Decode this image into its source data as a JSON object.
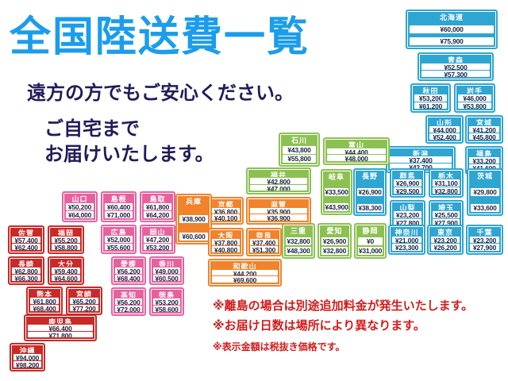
{
  "title": "全国陸送費一覧",
  "tagline1": "遠方の方でもご安心ください。",
  "tagline2": "ご自宅まで",
  "tagline3": "お届けいたします。",
  "notes": {
    "remote_islands": "※離島の場合は別途追加料金が発生いたします。",
    "delivery_days": "※お届け日数は場所により異なります。",
    "tax_excluded": "※表示金額は税抜き価格です。"
  },
  "colors": {
    "title_blue": "#1b9deb",
    "navy": "#211c59",
    "note_red": "#d31b1b",
    "group_blue": "#2fa5d2",
    "group_green": "#8cc152",
    "group_orange": "#f0832b",
    "group_pink": "#e8619f",
    "group_red": "#c92a28"
  },
  "prefectures": [
    {
      "id": "hokkaido",
      "name": "北海道",
      "group": "blue",
      "price1": "¥60,000",
      "price2": "¥75,900"
    },
    {
      "id": "aomori",
      "name": "青森",
      "group": "blue",
      "price1": "¥52,500",
      "price2": "¥57,300"
    },
    {
      "id": "akita",
      "name": "秋田",
      "group": "blue",
      "price1": "¥53,200",
      "price2": "¥61,200"
    },
    {
      "id": "iwate",
      "name": "岩手",
      "group": "blue",
      "price1": "¥46,000",
      "price2": "¥53,800"
    },
    {
      "id": "yamagata",
      "name": "山形",
      "group": "blue",
      "price1": "¥44,000",
      "price2": "¥52,400"
    },
    {
      "id": "miyagi",
      "name": "宮城",
      "group": "blue",
      "price1": "¥41,200",
      "price2": "¥45,800"
    },
    {
      "id": "niigata",
      "name": "新潟",
      "group": "blue",
      "price1": "¥37,400",
      "price2": "¥42,700"
    },
    {
      "id": "fukushima",
      "name": "福島",
      "group": "blue",
      "price1": "¥33,200",
      "price2": "¥41,600"
    },
    {
      "id": "nagano",
      "name": "長野",
      "group": "blue",
      "price1": "¥26,900",
      "price2": "¥38,300"
    },
    {
      "id": "gunma",
      "name": "群馬",
      "group": "blue",
      "price1": "¥26,900",
      "price2": "¥29,500"
    },
    {
      "id": "tochigi",
      "name": "栃木",
      "group": "blue",
      "price1": "¥31,100",
      "price2": "¥32,800"
    },
    {
      "id": "ibaraki",
      "name": "茨城",
      "group": "blue",
      "price1": "¥29,800",
      "price2": "¥33,600"
    },
    {
      "id": "yamanashi",
      "name": "山梨",
      "group": "blue",
      "price1": "¥23,200",
      "price2": "¥27,800"
    },
    {
      "id": "saitama",
      "name": "埼玉",
      "group": "blue",
      "price1": "¥25,500",
      "price2": "¥27,900"
    },
    {
      "id": "kanagawa",
      "name": "神奈川",
      "group": "blue",
      "price1": "¥21,000",
      "price2": "¥23,300"
    },
    {
      "id": "tokyo",
      "name": "東京",
      "group": "blue",
      "price1": "¥23,200",
      "price2": "¥26,200"
    },
    {
      "id": "chiba",
      "name": "千葉",
      "group": "blue",
      "price1": "¥23,200",
      "price2": "¥27,900"
    },
    {
      "id": "ishikawa",
      "name": "石川",
      "group": "green",
      "price1": "¥43,800",
      "price2": "¥55,800"
    },
    {
      "id": "toyama",
      "name": "富山",
      "group": "green",
      "price1": "¥44,400",
      "price2": "¥48,000"
    },
    {
      "id": "fukui",
      "name": "福井",
      "group": "green",
      "price1": "¥42,800",
      "price2": "¥47,000"
    },
    {
      "id": "gifu",
      "name": "岐阜",
      "group": "green",
      "price1": "¥33,500",
      "price2": "¥43,900"
    },
    {
      "id": "mie",
      "name": "三重",
      "group": "green",
      "price1": "¥32,800",
      "price2": "¥48,300"
    },
    {
      "id": "aichi",
      "name": "愛知",
      "group": "green",
      "price1": "¥26,900",
      "price2": "¥32,800"
    },
    {
      "id": "shizuoka",
      "name": "静岡",
      "group": "green",
      "price1": "¥0",
      "price2": "¥31,000"
    },
    {
      "id": "shiga",
      "name": "滋賀",
      "group": "orange",
      "price1": "¥35,900",
      "price2": "¥36,900"
    },
    {
      "id": "kyoto",
      "name": "京都",
      "group": "orange",
      "price1": "¥36,800",
      "price2": "¥40,100"
    },
    {
      "id": "hyogo",
      "name": "兵庫",
      "group": "orange",
      "price1": "¥38,900",
      "price2": "¥60,600"
    },
    {
      "id": "osaka",
      "name": "大阪",
      "group": "orange",
      "price1": "¥37,800",
      "price2": "¥40,800"
    },
    {
      "id": "nara",
      "name": "奈良",
      "group": "orange",
      "price1": "¥37,400",
      "price2": "¥51,300"
    },
    {
      "id": "wakayama",
      "name": "和歌山",
      "group": "orange",
      "price1": "¥44,200",
      "price2": "¥69,600"
    },
    {
      "id": "tottori",
      "name": "鳥取",
      "group": "pink",
      "price1": "¥61,800",
      "price2": "¥64,200"
    },
    {
      "id": "shimane",
      "name": "島根",
      "group": "pink",
      "price1": "¥60,400",
      "price2": "¥71,000"
    },
    {
      "id": "yamaguchi",
      "name": "山口",
      "group": "pink",
      "price1": "¥50,200",
      "price2": "¥64,000"
    },
    {
      "id": "hiroshima",
      "name": "広島",
      "group": "pink",
      "price1": "¥52,000",
      "price2": "¥55,600"
    },
    {
      "id": "okayama",
      "name": "岡山",
      "group": "pink",
      "price1": "¥47,200",
      "price2": "¥53,200"
    },
    {
      "id": "ehime",
      "name": "愛媛",
      "group": "pink",
      "price1": "¥56,200",
      "price2": "¥68,400"
    },
    {
      "id": "kagawa",
      "name": "香川",
      "group": "pink",
      "price1": "¥49,000",
      "price2": "¥60,500"
    },
    {
      "id": "kochi",
      "name": "高知",
      "group": "pink",
      "price1": "¥56,200",
      "price2": "¥72,000"
    },
    {
      "id": "tokushima",
      "name": "徳島",
      "group": "pink",
      "price1": "¥53,200",
      "price2": "¥58,600"
    },
    {
      "id": "saga",
      "name": "佐賀",
      "group": "red",
      "price1": "¥57,400",
      "price2": "¥62,400"
    },
    {
      "id": "fukuoka",
      "name": "福岡",
      "group": "red",
      "price1": "¥55,200",
      "price2": "¥58,800"
    },
    {
      "id": "nagasaki",
      "name": "長崎",
      "group": "red",
      "price1": "¥62,800",
      "price2": "¥66,300"
    },
    {
      "id": "oita",
      "name": "大分",
      "group": "red",
      "price1": "¥59,400",
      "price2": "¥64,600"
    },
    {
      "id": "kumamoto",
      "name": "熊本",
      "group": "red",
      "price1": "¥61,800",
      "price2": "¥68,400"
    },
    {
      "id": "miyazaki",
      "name": "宮崎",
      "group": "red",
      "price1": "¥65,200",
      "price2": "¥77,200"
    },
    {
      "id": "kagoshima",
      "name": "鹿児島",
      "group": "red",
      "price1": "¥66,400",
      "price2": "¥71,800"
    },
    {
      "id": "okinawa",
      "name": "沖縄",
      "group": "red",
      "price1": "¥94,000",
      "price2": "¥98,200"
    }
  ]
}
